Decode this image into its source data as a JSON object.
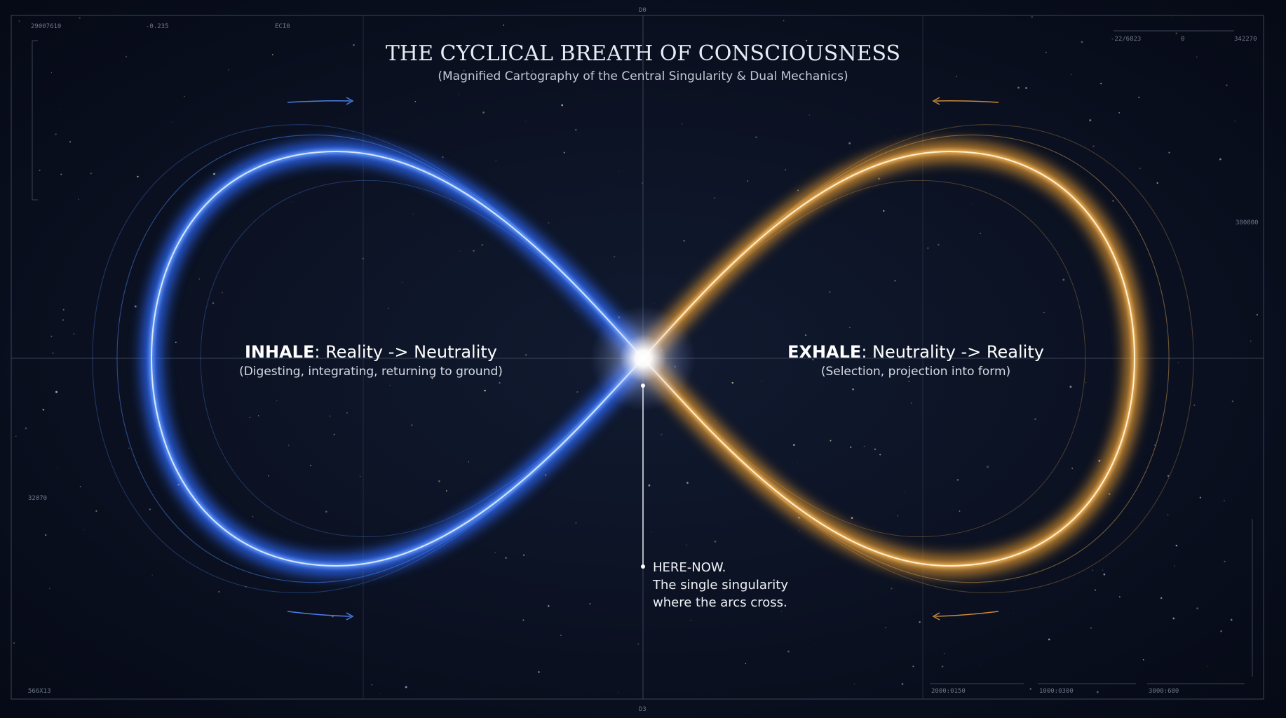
{
  "header": {
    "title": "THE CYCLICAL BREATH OF CONSCIOUSNESS",
    "subtitle": "(Magnified Cartography of the Central Singularity & Dual Mechanics)"
  },
  "inhale": {
    "keyword": "INHALE",
    "label": ": Reality -> Neutrality",
    "description": "(Digesting, integrating, returning to ground)"
  },
  "exhale": {
    "keyword": "EXHALE",
    "label": ": Neutrality -> Reality",
    "description": "(Selection, projection into form)"
  },
  "singularity": {
    "lines": [
      "HERE-NOW.",
      "The single singularity",
      "where the arcs cross."
    ]
  },
  "frame_labels": [
    "29007610",
    "-0.235",
    "ECI0",
    "D0",
    "-22/6823",
    "0",
    "342270",
    "380800",
    "32070",
    "566X13",
    "D3",
    "2000:0150",
    "1000:0300",
    "3000:680"
  ]
}
